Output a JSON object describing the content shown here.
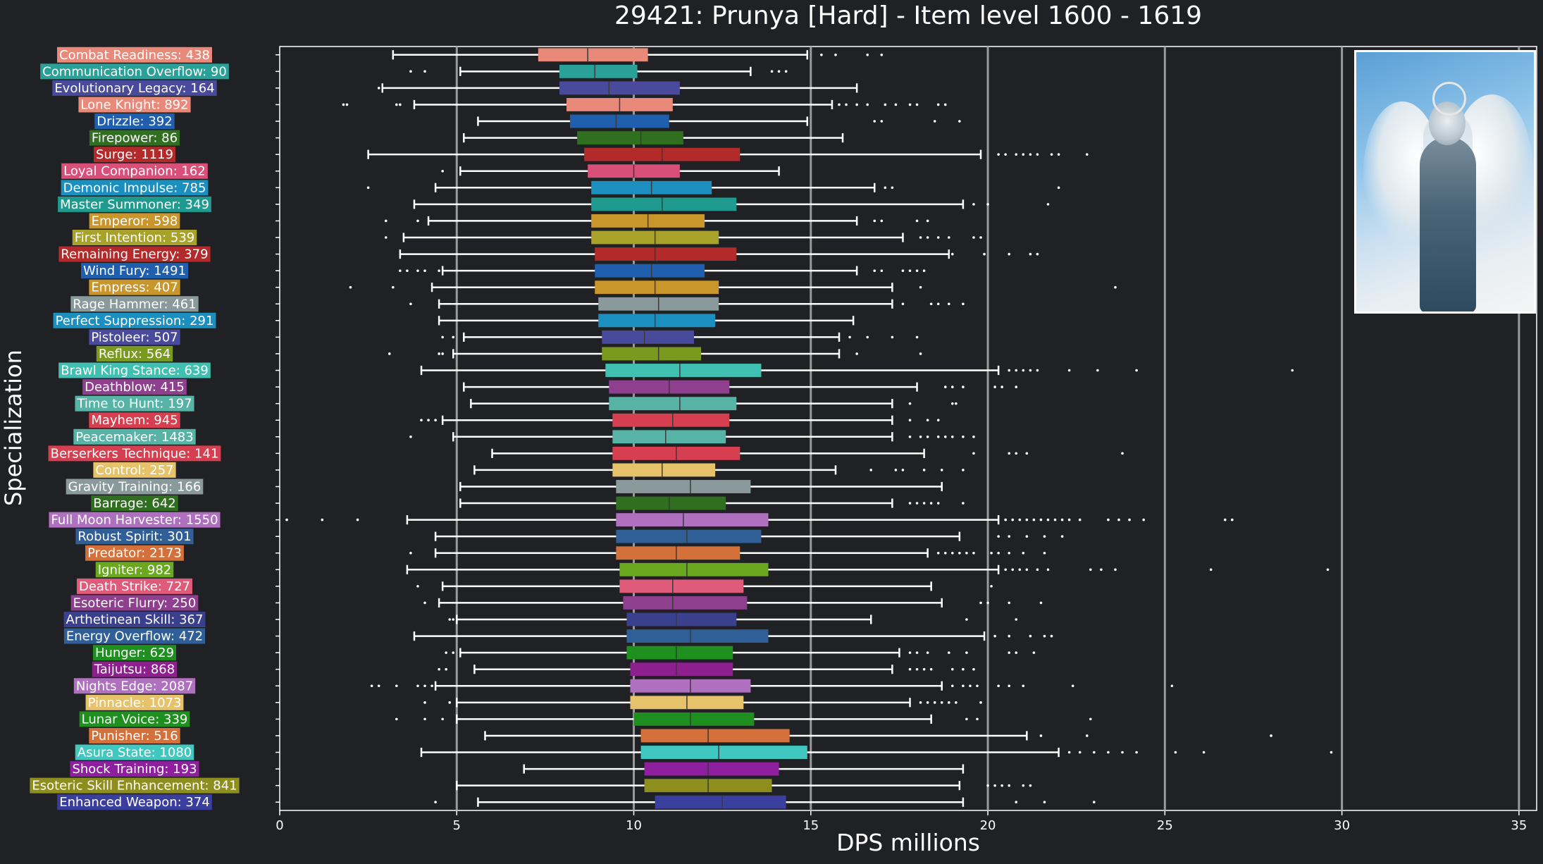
{
  "chart_data": {
    "type": "boxplot",
    "title": "29421: Prunya [Hard] - Item level 1600 - 1619",
    "xlabel": "DPS millions",
    "ylabel": "Specialization",
    "xlim": [
      0,
      35.5
    ],
    "xticks": [
      0,
      5,
      10,
      15,
      20,
      25,
      30,
      35
    ],
    "grid_x": true,
    "series": [
      {
        "label": "Combat Readiness: 438",
        "color": "#e8897a",
        "whislo": 3.2,
        "q1": 7.3,
        "med": 8.7,
        "q3": 10.4,
        "whishi": 14.9,
        "fliers": [
          15.3,
          15.7,
          16.6,
          17.0
        ]
      },
      {
        "label": "Communication Overflow: 90",
        "color": "#2aa198",
        "whislo": 5.1,
        "q1": 7.9,
        "med": 8.9,
        "q3": 10.1,
        "whishi": 13.3,
        "fliers": [
          3.7,
          4.1,
          13.9,
          14.1,
          14.3
        ]
      },
      {
        "label": "Evolutionary Legacy: 164",
        "color": "#4a4a9c",
        "whislo": 2.9,
        "q1": 7.9,
        "med": 9.3,
        "q3": 11.3,
        "whishi": 16.3,
        "fliers": [
          2.8
        ]
      },
      {
        "label": "Lone Knight: 892",
        "color": "#e8897a",
        "whislo": 3.8,
        "q1": 8.1,
        "med": 9.6,
        "q3": 11.1,
        "whishi": 15.6,
        "fliers": [
          1.8,
          1.9,
          3.3,
          3.4,
          15.8,
          16.0,
          16.3,
          16.6,
          17.1,
          17.4,
          17.8,
          18.0,
          18.6,
          18.8
        ]
      },
      {
        "label": "Drizzle: 392",
        "color": "#1f5fae",
        "whislo": 5.6,
        "q1": 8.2,
        "med": 9.5,
        "q3": 11.0,
        "whishi": 14.9,
        "fliers": [
          16.8,
          17.0,
          18.5,
          19.2
        ]
      },
      {
        "label": "Firepower: 86",
        "color": "#2f6f1f",
        "whislo": 5.2,
        "q1": 8.4,
        "med": 10.2,
        "q3": 11.4,
        "whishi": 15.9,
        "fliers": []
      },
      {
        "label": "Surge: 1119",
        "color": "#b22a2a",
        "whislo": 2.5,
        "q1": 8.6,
        "med": 10.8,
        "q3": 13.0,
        "whishi": 19.8,
        "fliers": [
          20.3,
          20.5,
          20.8,
          21.0,
          21.2,
          21.4,
          21.8,
          22.0,
          22.8
        ]
      },
      {
        "label": "Loyal Companion: 162",
        "color": "#d84f7a",
        "whislo": 5.1,
        "q1": 8.7,
        "med": 10.0,
        "q3": 11.3,
        "whishi": 14.1,
        "fliers": [
          4.6
        ]
      },
      {
        "label": "Demonic Impulse: 785",
        "color": "#1b8fc0",
        "whislo": 4.4,
        "q1": 8.8,
        "med": 10.5,
        "q3": 12.2,
        "whishi": 16.8,
        "fliers": [
          2.5,
          17.1,
          17.3,
          22.0
        ]
      },
      {
        "label": "Master Summoner: 349",
        "color": "#1e9a8e",
        "whislo": 3.8,
        "q1": 8.8,
        "med": 10.8,
        "q3": 12.9,
        "whishi": 19.3,
        "fliers": [
          19.6,
          20.0,
          21.7
        ]
      },
      {
        "label": "Emperor: 598",
        "color": "#c9962b",
        "whislo": 4.2,
        "q1": 8.8,
        "med": 10.4,
        "q3": 12.0,
        "whishi": 16.3,
        "fliers": [
          3.0,
          3.9,
          16.8,
          17.0,
          18.0,
          18.3
        ]
      },
      {
        "label": "First Intention: 539",
        "color": "#a8a12a",
        "whislo": 3.5,
        "q1": 8.8,
        "med": 10.6,
        "q3": 12.4,
        "whishi": 17.6,
        "fliers": [
          3.0,
          18.1,
          18.3,
          18.6,
          18.9,
          19.6,
          19.8
        ]
      },
      {
        "label": "Remaining Energy: 379",
        "color": "#b22a2a",
        "whislo": 3.4,
        "q1": 8.9,
        "med": 10.6,
        "q3": 12.9,
        "whishi": 18.9,
        "fliers": [
          19.0,
          19.9,
          20.6,
          21.2,
          21.4
        ]
      },
      {
        "label": "Wind Fury: 1491",
        "color": "#1f5fae",
        "whislo": 4.6,
        "q1": 8.9,
        "med": 10.5,
        "q3": 12.0,
        "whishi": 16.3,
        "fliers": [
          3.4,
          3.6,
          3.9,
          4.1,
          4.5,
          16.8,
          17.0,
          17.6,
          17.8,
          18.0,
          18.2
        ]
      },
      {
        "label": "Empress: 407",
        "color": "#c9962b",
        "whislo": 4.3,
        "q1": 8.9,
        "med": 10.6,
        "q3": 12.4,
        "whishi": 17.3,
        "fliers": [
          2.0,
          3.2,
          18.1,
          23.6
        ]
      },
      {
        "label": "Rage Hammer: 461",
        "color": "#8a9a9c",
        "whislo": 4.5,
        "q1": 9.0,
        "med": 10.7,
        "q3": 12.4,
        "whishi": 17.3,
        "fliers": [
          3.7,
          17.6,
          18.4,
          18.6,
          18.9,
          19.3
        ]
      },
      {
        "label": "Perfect Suppression: 291",
        "color": "#1b8fc0",
        "whislo": 4.5,
        "q1": 9.0,
        "med": 10.6,
        "q3": 12.3,
        "whishi": 16.2,
        "fliers": []
      },
      {
        "label": "Pistoleer: 507",
        "color": "#4a4a9c",
        "whislo": 5.2,
        "q1": 9.1,
        "med": 10.3,
        "q3": 11.7,
        "whishi": 15.8,
        "fliers": [
          4.6,
          4.9,
          16.1,
          16.6,
          17.3,
          18.0
        ]
      },
      {
        "label": "Reflux: 564",
        "color": "#7a9a1f",
        "whislo": 4.9,
        "q1": 9.1,
        "med": 10.7,
        "q3": 11.9,
        "whishi": 15.8,
        "fliers": [
          3.1,
          4.5,
          4.6,
          16.3,
          18.1
        ]
      },
      {
        "label": "Brawl King Stance: 639",
        "color": "#40c0b0",
        "whislo": 4.0,
        "q1": 9.2,
        "med": 11.3,
        "q3": 13.6,
        "whishi": 20.3,
        "fliers": [
          20.6,
          20.8,
          21.0,
          21.2,
          21.4,
          22.3,
          23.1,
          24.2,
          28.6
        ]
      },
      {
        "label": "Deathblow: 415",
        "color": "#8e3f8e",
        "whislo": 5.2,
        "q1": 9.3,
        "med": 11.0,
        "q3": 12.7,
        "whishi": 18.0,
        "fliers": [
          18.8,
          19.0,
          19.3,
          20.2,
          20.4,
          20.8
        ]
      },
      {
        "label": "Time to Hunt: 197",
        "color": "#57b3a6",
        "whislo": 5.4,
        "q1": 9.3,
        "med": 11.3,
        "q3": 12.9,
        "whishi": 17.3,
        "fliers": [
          17.8,
          19.0,
          19.1
        ]
      },
      {
        "label": "Mayhem: 945",
        "color": "#d63f50",
        "whislo": 4.6,
        "q1": 9.4,
        "med": 11.1,
        "q3": 12.7,
        "whishi": 17.3,
        "fliers": [
          4.0,
          4.2,
          4.4,
          17.8,
          18.3,
          18.6
        ]
      },
      {
        "label": "Peacemaker: 1483",
        "color": "#57b3a6",
        "whislo": 4.9,
        "q1": 9.4,
        "med": 10.9,
        "q3": 12.6,
        "whishi": 17.3,
        "fliers": [
          3.7,
          17.8,
          18.1,
          18.3,
          18.6,
          18.8,
          19.0,
          19.3,
          19.6
        ]
      },
      {
        "label": "Berserkers Technique: 141",
        "color": "#d63f50",
        "whislo": 6.0,
        "q1": 9.4,
        "med": 11.2,
        "q3": 13.0,
        "whishi": 18.2,
        "fliers": [
          19.6,
          20.6,
          20.8,
          21.1,
          23.8
        ]
      },
      {
        "label": "Control: 257",
        "color": "#e6c36a",
        "whislo": 5.5,
        "q1": 9.4,
        "med": 10.8,
        "q3": 12.3,
        "whishi": 15.7,
        "fliers": [
          16.7,
          17.4,
          17.6,
          18.2,
          18.7,
          19.3
        ]
      },
      {
        "label": "Gravity Training: 166",
        "color": "#8a9a9c",
        "whislo": 5.1,
        "q1": 9.5,
        "med": 11.6,
        "q3": 13.3,
        "whishi": 18.7,
        "fliers": []
      },
      {
        "label": "Barrage: 642",
        "color": "#2f6f1f",
        "whislo": 5.1,
        "q1": 9.5,
        "med": 11.0,
        "q3": 12.6,
        "whishi": 17.3,
        "fliers": [
          17.8,
          18.0,
          18.2,
          18.4,
          18.6,
          19.3
        ]
      },
      {
        "label": "Full Moon Harvester: 1550",
        "color": "#b070c0",
        "whislo": 3.6,
        "q1": 9.5,
        "med": 11.4,
        "q3": 13.8,
        "whishi": 20.3,
        "fliers": [
          0.2,
          1.2,
          2.2,
          20.5,
          20.7,
          20.9,
          21.1,
          21.3,
          21.5,
          21.7,
          21.9,
          22.1,
          22.3,
          22.6,
          23.4,
          23.7,
          24.0,
          24.4,
          26.7,
          26.9
        ]
      },
      {
        "label": "Robust Spirit: 301",
        "color": "#2f5f96",
        "whislo": 4.4,
        "q1": 9.5,
        "med": 11.5,
        "q3": 13.6,
        "whishi": 19.2,
        "fliers": [
          20.3,
          20.6,
          21.1,
          21.6,
          22.1
        ]
      },
      {
        "label": "Predator: 2173",
        "color": "#d4703a",
        "whislo": 4.4,
        "q1": 9.5,
        "med": 11.2,
        "q3": 13.0,
        "whishi": 18.3,
        "fliers": [
          3.7,
          18.6,
          18.8,
          19.0,
          19.2,
          19.4,
          19.6,
          20.1,
          20.3,
          20.6,
          21.0,
          21.6
        ]
      },
      {
        "label": "Igniter: 982",
        "color": "#6aa81f",
        "whislo": 3.6,
        "q1": 9.6,
        "med": 11.5,
        "q3": 13.8,
        "whishi": 20.3,
        "fliers": [
          20.5,
          20.7,
          20.9,
          21.1,
          21.4,
          21.7,
          22.9,
          23.2,
          23.6,
          26.3,
          29.6
        ]
      },
      {
        "label": "Death Strike: 727",
        "color": "#e05a7a",
        "whislo": 4.6,
        "q1": 9.6,
        "med": 11.1,
        "q3": 13.1,
        "whishi": 18.4,
        "fliers": [
          3.9,
          20.1
        ]
      },
      {
        "label": "Esoteric Flurry: 250",
        "color": "#8e3f8e",
        "whislo": 4.5,
        "q1": 9.7,
        "med": 11.1,
        "q3": 13.2,
        "whishi": 18.7,
        "fliers": [
          4.1,
          19.8,
          20.0,
          20.6,
          21.5
        ]
      },
      {
        "label": "Arthetinean Skill: 367",
        "color": "#3a3f8e",
        "whislo": 5.0,
        "q1": 9.8,
        "med": 11.2,
        "q3": 12.9,
        "whishi": 16.7,
        "fliers": [
          4.8,
          4.9,
          19.4,
          20.8
        ]
      },
      {
        "label": "Energy Overflow: 472",
        "color": "#2f5f96",
        "whislo": 3.8,
        "q1": 9.8,
        "med": 11.6,
        "q3": 13.8,
        "whishi": 19.9,
        "fliers": [
          20.2,
          20.6,
          21.2,
          21.6,
          21.8
        ]
      },
      {
        "label": "Hunger: 629",
        "color": "#1f8f1f",
        "whislo": 5.1,
        "q1": 9.8,
        "med": 11.2,
        "q3": 12.8,
        "whishi": 17.5,
        "fliers": [
          4.7,
          4.9,
          17.8,
          18.0,
          18.3,
          18.9,
          19.4,
          20.6,
          20.8,
          21.3
        ]
      },
      {
        "label": "Taijutsu: 868",
        "color": "#8e1f8e",
        "whislo": 5.5,
        "q1": 9.9,
        "med": 11.2,
        "q3": 12.8,
        "whishi": 17.3,
        "fliers": [
          4.5,
          4.7,
          17.8,
          18.0,
          18.2,
          18.4,
          19.0,
          19.3,
          19.6
        ]
      },
      {
        "label": "Nights Edge: 2087",
        "color": "#b070c0",
        "whislo": 4.4,
        "q1": 9.9,
        "med": 11.6,
        "q3": 13.3,
        "whishi": 18.7,
        "fliers": [
          2.6,
          2.8,
          3.3,
          3.9,
          4.1,
          4.3,
          19.0,
          19.3,
          19.5,
          19.7,
          20.3,
          20.6,
          21.0,
          22.4,
          25.2
        ]
      },
      {
        "label": "Pinnacle: 1073",
        "color": "#e6c36a",
        "whislo": 5.0,
        "q1": 9.9,
        "med": 11.5,
        "q3": 13.1,
        "whishi": 17.8,
        "fliers": [
          4.1,
          4.8,
          18.1,
          18.3,
          18.5,
          18.7,
          18.9,
          19.1,
          19.8
        ]
      },
      {
        "label": "Lunar Voice: 339",
        "color": "#1f8f1f",
        "whislo": 5.0,
        "q1": 10.0,
        "med": 11.6,
        "q3": 13.4,
        "whishi": 18.4,
        "fliers": [
          3.3,
          4.1,
          4.6,
          19.4,
          19.7,
          22.9
        ]
      },
      {
        "label": "Punisher: 516",
        "color": "#d4703a",
        "whislo": 5.8,
        "q1": 10.2,
        "med": 12.1,
        "q3": 14.4,
        "whishi": 21.1,
        "fliers": [
          21.5,
          22.8,
          28.0
        ]
      },
      {
        "label": "Asura State: 1080",
        "color": "#40c8c0",
        "whislo": 4.0,
        "q1": 10.2,
        "med": 12.4,
        "q3": 14.9,
        "whishi": 22.0,
        "fliers": [
          22.3,
          22.6,
          23.0,
          23.4,
          23.8,
          24.2,
          25.3,
          26.1,
          29.7
        ]
      },
      {
        "label": "Shock Training: 193",
        "color": "#8e1f9e",
        "whislo": 6.9,
        "q1": 10.3,
        "med": 12.1,
        "q3": 14.1,
        "whishi": 19.3,
        "fliers": []
      },
      {
        "label": "Esoteric Skill Enhancement: 841",
        "color": "#8e8e1f",
        "whislo": 5.0,
        "q1": 10.3,
        "med": 12.1,
        "q3": 13.9,
        "whishi": 19.2,
        "fliers": [
          20.0,
          20.2,
          20.4,
          20.6,
          21.0,
          21.2
        ]
      },
      {
        "label": "Enhanced Weapon: 374",
        "color": "#3a3f9e",
        "whislo": 5.6,
        "q1": 10.6,
        "med": 12.5,
        "q3": 14.3,
        "whishi": 19.3,
        "fliers": [
          4.4,
          20.8,
          21.6,
          23.0
        ]
      }
    ]
  }
}
